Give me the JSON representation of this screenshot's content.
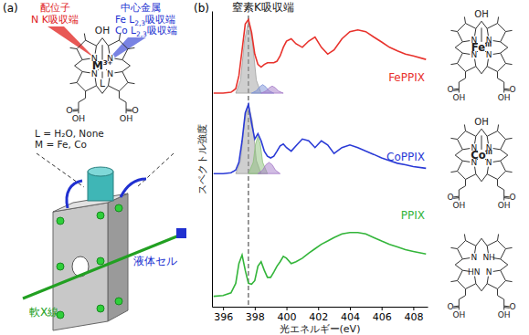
{
  "panel_a": {
    "label": "(a)",
    "ligand": {
      "title": "配位子",
      "edge": "N K吸収端",
      "color": "#e0201c"
    },
    "metal": {
      "title": "中心金属",
      "color": "#2030d0",
      "edges": [
        {
          "text": "Fe L",
          "sub": "2,3",
          "tail": "吸収端"
        },
        {
          "text": "Co L",
          "sub": "2,3",
          "tail": "吸収端"
        }
      ]
    },
    "molecule": {
      "axial": "OH",
      "metal": "M",
      "metal_sup": "3+",
      "axial_bottom": "L",
      "nitrogens": [
        "N",
        "N",
        "N",
        "N"
      ],
      "acids": [
        "OH",
        "OH"
      ],
      "carbonyls": [
        "O",
        "O"
      ]
    },
    "notes": [
      "L = H₂O, None",
      "M = Fe, Co"
    ],
    "beam": {
      "text": "軟X線",
      "color": "#22a022"
    },
    "cell": {
      "text": "液体セル",
      "color": "#2030d0"
    }
  },
  "chart_data": {
    "type": "line",
    "label": "(b)",
    "title": "窒素K吸収端",
    "x_label": "光エネルギー(eV)",
    "y_label": "スペクトル強度",
    "x": [
      395.4,
      396.0,
      396.5,
      396.8,
      397.0,
      397.2,
      397.4,
      397.6,
      397.8,
      398.0,
      398.2,
      398.4,
      398.6,
      398.8,
      399.0,
      399.2,
      399.4,
      399.6,
      399.8,
      400.0,
      400.3,
      400.6,
      401.0,
      401.4,
      401.8,
      402.2,
      402.6,
      403.0,
      403.5,
      404.0,
      404.5,
      405.0,
      405.5,
      406.0,
      406.5,
      407.0,
      407.5,
      408.0,
      408.8
    ],
    "xlim": [
      395.3,
      408.9
    ],
    "xticks": [
      396,
      398,
      400,
      402,
      404,
      406,
      408
    ],
    "ylim": [
      0,
      10
    ],
    "tick_labels": "x",
    "vlines": [
      397.6
    ],
    "series": [
      {
        "name": "FePPIX",
        "color": "#e8322c",
        "values": [
          7.22,
          7.22,
          7.25,
          7.37,
          7.81,
          8.68,
          9.56,
          9.71,
          9.27,
          8.54,
          8.19,
          8.1,
          8.19,
          8.25,
          8.25,
          8.25,
          8.3,
          8.48,
          8.77,
          8.98,
          9.06,
          8.89,
          8.77,
          8.98,
          9.12,
          8.77,
          8.54,
          8.68,
          9.06,
          9.3,
          9.36,
          9.3,
          9.12,
          8.95,
          8.77,
          8.65,
          8.54,
          8.48,
          8.36
        ]
      },
      {
        "name": "CoPPIX",
        "color": "#2a3ad6",
        "values": [
          4.5,
          4.5,
          4.53,
          4.62,
          4.88,
          5.61,
          6.55,
          6.84,
          6.2,
          5.67,
          5.85,
          5.61,
          5.26,
          5.09,
          5.03,
          5.09,
          5.26,
          5.44,
          5.5,
          5.38,
          5.26,
          5.44,
          5.67,
          5.61,
          5.38,
          5.61,
          5.47,
          5.18,
          5.38,
          5.47,
          5.38,
          5.26,
          5.15,
          5.03,
          4.94,
          4.85,
          4.8,
          4.74,
          4.68
        ]
      },
      {
        "name": "PPIX",
        "color": "#33b53a",
        "values": [
          0.35,
          0.38,
          0.47,
          0.79,
          1.46,
          1.75,
          1.23,
          0.79,
          0.76,
          0.88,
          1.37,
          1.52,
          1.23,
          0.99,
          0.99,
          1.17,
          1.37,
          1.52,
          1.7,
          1.64,
          1.46,
          1.52,
          1.64,
          1.81,
          1.96,
          2.11,
          2.22,
          2.34,
          2.46,
          2.51,
          2.51,
          2.46,
          2.34,
          2.22,
          2.11,
          2.02,
          1.93,
          1.87,
          1.78
        ]
      },
      {
        "type": "area",
        "color": "#a0a0a0",
        "x": [
          396.8,
          397.1,
          397.35,
          397.6,
          397.85,
          398.1,
          398.4
        ],
        "values": [
          7.22,
          7.66,
          8.98,
          9.65,
          8.98,
          7.66,
          7.22
        ]
      },
      {
        "type": "area",
        "color": "#7a90d8",
        "x": [
          397.8,
          398.1,
          398.3,
          398.5,
          398.7,
          398.9,
          399.2
        ],
        "values": [
          7.22,
          7.3,
          7.43,
          7.51,
          7.43,
          7.3,
          7.22
        ]
      },
      {
        "type": "area",
        "color": "#a47ac8",
        "x": [
          398.4,
          398.7,
          398.9,
          399.1,
          399.3,
          399.5,
          399.8
        ],
        "values": [
          7.22,
          7.29,
          7.4,
          7.46,
          7.4,
          7.29,
          7.22
        ]
      },
      {
        "type": "area",
        "color": "#a0a0a0",
        "x": [
          396.8,
          397.1,
          397.35,
          397.6,
          397.85,
          398.1,
          398.4
        ],
        "values": [
          4.5,
          4.94,
          6.26,
          6.84,
          6.26,
          4.94,
          4.5
        ]
      },
      {
        "type": "area",
        "color": "#8cc07a",
        "x": [
          397.6,
          397.9,
          398.05,
          398.2,
          398.35,
          398.5,
          398.8
        ],
        "values": [
          4.5,
          4.88,
          5.5,
          5.76,
          5.5,
          4.88,
          4.5
        ]
      },
      {
        "type": "area",
        "color": "#a47ac8",
        "x": [
          398.2,
          398.5,
          398.7,
          398.9,
          399.1,
          399.3,
          399.6
        ],
        "values": [
          4.5,
          4.62,
          4.8,
          4.88,
          4.8,
          4.62,
          4.5
        ]
      }
    ]
  },
  "structures": [
    {
      "axial": "OH",
      "metal": "Fe",
      "metal_sup": "III",
      "nitrogens": [
        "N",
        "N",
        "N",
        "N"
      ],
      "acids": [
        "OH",
        "OH"
      ],
      "carbonyls": [
        "O",
        "O"
      ]
    },
    {
      "axial": "OH",
      "metal": "Co",
      "metal_sup": "III",
      "nitrogens": [
        "N",
        "N",
        "N",
        "N"
      ],
      "acids": [
        "OH",
        "OH"
      ],
      "carbonyls": [
        "O",
        "O"
      ]
    },
    {
      "nitrogens": [
        "N",
        "NH",
        "N",
        "HN"
      ],
      "acids": [
        "OH",
        "OH"
      ],
      "carbonyls": [
        "O",
        "O"
      ]
    }
  ]
}
